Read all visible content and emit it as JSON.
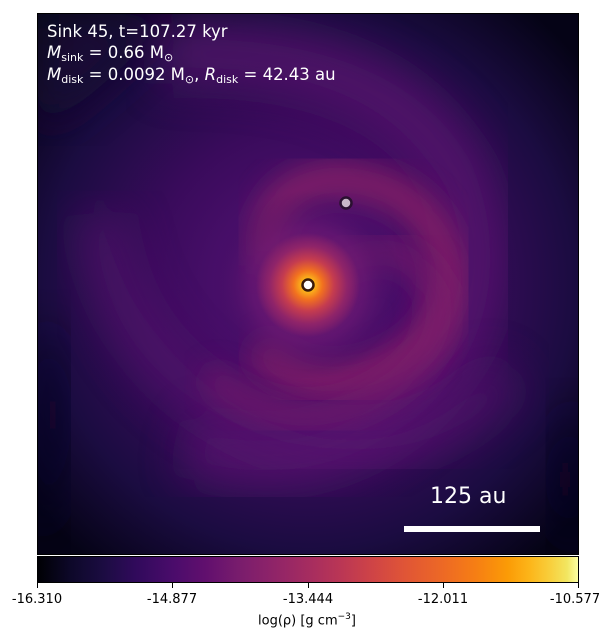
{
  "annotation": {
    "title": "Sink 45, t=107.27 kyr",
    "sink_mass_symbol": "M",
    "sink_mass_sub": "sink",
    "sink_mass_value": " = 0.66 M",
    "sink_mass_unit_sub": "⊙",
    "disk_mass_symbol": "M",
    "disk_mass_sub": "disk",
    "disk_mass_value": " = 0.0092 M",
    "disk_mass_unit_sub": "⊙",
    "disk_radius_symbol": "R",
    "disk_radius_sub": "disk",
    "disk_radius_value": " = 42.43 au"
  },
  "scale_bar": {
    "label": "125 au",
    "length_au": 125
  },
  "colorbar": {
    "colormap": "inferno",
    "ticks": [
      "-16.310",
      "-14.877",
      "-13.444",
      "-12.011",
      "-10.577"
    ],
    "range": [
      -16.31,
      -10.577
    ],
    "label_prefix": "log(ρ) [g cm",
    "label_exp": "−3",
    "label_suffix": "]"
  },
  "sinks": [
    {
      "name": "primary",
      "fill": "#ffffff",
      "ring": "#3a1a0a"
    },
    {
      "name": "secondary",
      "fill": "#c8b8c8",
      "ring": "#2a1030"
    }
  ],
  "colors": {
    "background_deep": "#000004",
    "disk_core": "#f98e09",
    "spiral_arm": "#7a1e6c",
    "scale_bar": "#ffffff",
    "annotation_text": "#ffffff"
  }
}
